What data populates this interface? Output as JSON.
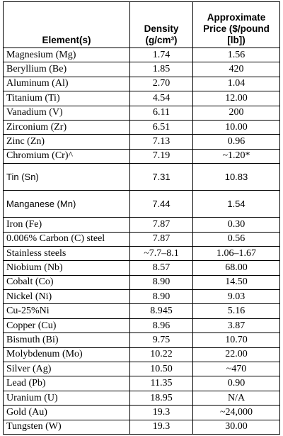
{
  "table": {
    "header": {
      "element": "Element(s)",
      "density": [
        "Density",
        "(g/cm³)"
      ],
      "price": [
        "Approximate",
        "Price ($/pound",
        "[lb])"
      ]
    },
    "rows": [
      [
        "Magnesium (Mg)",
        "1.74",
        "1.56"
      ],
      [
        "Beryllium (Be)",
        "1.85",
        "420"
      ],
      [
        "Aluminum (Al)",
        "2.70",
        "1.04"
      ],
      [
        "Titanium (Ti)",
        "4.54",
        "12.00"
      ],
      [
        "Vanadium (V)",
        "6.11",
        "200"
      ],
      [
        "Zirconium (Zr)",
        "6.51",
        "10.00"
      ],
      [
        "Zinc (Zn)",
        "7.13",
        "0.96"
      ],
      [
        "Chromium (Cr)^",
        "7.19",
        "~1.20*"
      ],
      [
        "Tin (Sn)",
        "7.31",
        "10.83"
      ],
      [
        "Manganese (Mn)",
        "7.44",
        "1.54"
      ],
      [
        "Iron (Fe)",
        "7.87",
        "0.30"
      ],
      [
        "0.006% Carbon (C) steel",
        "7.87",
        "0.56"
      ],
      [
        "Stainless steels",
        "~7.7–8.1",
        "1.06–1.67"
      ],
      [
        "Niobium (Nb)",
        "8.57",
        "68.00"
      ],
      [
        "Cobalt (Co)",
        "8.90",
        "14.50"
      ],
      [
        "Nickel (Ni)",
        "8.90",
        "9.03"
      ],
      [
        "Cu-25%Ni",
        "8.945",
        "5.16"
      ],
      [
        "Copper (Cu)",
        "8.96",
        "3.87"
      ],
      [
        "Bismuth (Bi)",
        "9.75",
        "10.70"
      ],
      [
        "Molybdenum (Mo)",
        "10.22",
        "22.00"
      ],
      [
        "Silver (Ag)",
        "10.50",
        "~470"
      ],
      [
        "Lead (Pb)",
        "11.35",
        "0.90"
      ],
      [
        "Uranium (U)",
        "18.95",
        "N/A"
      ],
      [
        "Gold (Au)",
        "19.3",
        "~24,000"
      ],
      [
        "Tungsten (W)",
        "19.3",
        "30.00"
      ]
    ]
  }
}
